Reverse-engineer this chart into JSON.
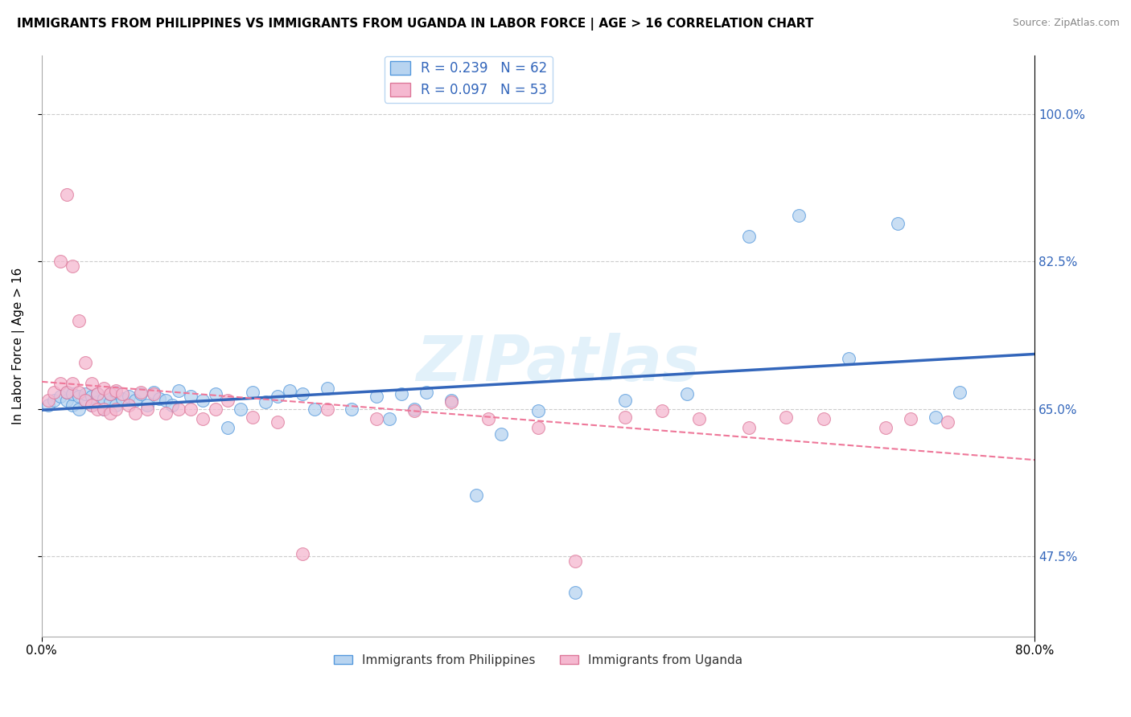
{
  "title": "IMMIGRANTS FROM PHILIPPINES VS IMMIGRANTS FROM UGANDA IN LABOR FORCE | AGE > 16 CORRELATION CHART",
  "source": "Source: ZipAtlas.com",
  "ylabel": "In Labor Force | Age > 16",
  "xmin": 0.0,
  "xmax": 0.8,
  "ymin": 0.38,
  "ymax": 1.07,
  "yticks": [
    0.475,
    0.65,
    0.825,
    1.0
  ],
  "ytick_labels": [
    "47.5%",
    "65.0%",
    "82.5%",
    "100.0%"
  ],
  "philippines_color": "#b8d4f0",
  "uganda_color": "#f5b8d0",
  "philippines_edge_color": "#5599dd",
  "uganda_edge_color": "#dd7799",
  "philippines_line_color": "#3366bb",
  "uganda_line_color": "#ee7799",
  "watermark": "ZIPatlas",
  "legend_philippines": "R = 0.239   N = 62",
  "legend_uganda": "R = 0.097   N = 53",
  "philippines_x": [
    0.005,
    0.01,
    0.015,
    0.02,
    0.02,
    0.025,
    0.025,
    0.03,
    0.03,
    0.035,
    0.035,
    0.04,
    0.04,
    0.045,
    0.045,
    0.05,
    0.05,
    0.055,
    0.055,
    0.06,
    0.06,
    0.065,
    0.07,
    0.075,
    0.08,
    0.085,
    0.09,
    0.095,
    0.1,
    0.105,
    0.11,
    0.12,
    0.13,
    0.14,
    0.15,
    0.16,
    0.17,
    0.18,
    0.19,
    0.2,
    0.21,
    0.22,
    0.23,
    0.25,
    0.27,
    0.28,
    0.29,
    0.3,
    0.31,
    0.33,
    0.35,
    0.37,
    0.4,
    0.43,
    0.47,
    0.52,
    0.57,
    0.61,
    0.65,
    0.69,
    0.72,
    0.74
  ],
  "philippines_y": [
    0.655,
    0.66,
    0.665,
    0.66,
    0.67,
    0.655,
    0.668,
    0.65,
    0.665,
    0.66,
    0.668,
    0.655,
    0.665,
    0.658,
    0.668,
    0.65,
    0.662,
    0.658,
    0.668,
    0.655,
    0.67,
    0.662,
    0.665,
    0.66,
    0.668,
    0.655,
    0.67,
    0.662,
    0.66,
    0.655,
    0.672,
    0.665,
    0.66,
    0.668,
    0.628,
    0.65,
    0.67,
    0.658,
    0.665,
    0.672,
    0.668,
    0.65,
    0.675,
    0.65,
    0.665,
    0.638,
    0.668,
    0.65,
    0.67,
    0.66,
    0.548,
    0.62,
    0.648,
    0.432,
    0.66,
    0.668,
    0.855,
    0.88,
    0.71,
    0.87,
    0.64,
    0.67
  ],
  "uganda_x": [
    0.005,
    0.01,
    0.015,
    0.015,
    0.02,
    0.02,
    0.025,
    0.025,
    0.03,
    0.03,
    0.035,
    0.035,
    0.04,
    0.04,
    0.045,
    0.045,
    0.05,
    0.05,
    0.055,
    0.055,
    0.06,
    0.06,
    0.065,
    0.07,
    0.075,
    0.08,
    0.085,
    0.09,
    0.1,
    0.11,
    0.12,
    0.13,
    0.14,
    0.15,
    0.17,
    0.19,
    0.21,
    0.23,
    0.27,
    0.3,
    0.33,
    0.36,
    0.4,
    0.43,
    0.47,
    0.5,
    0.53,
    0.57,
    0.6,
    0.63,
    0.68,
    0.7,
    0.73
  ],
  "uganda_y": [
    0.66,
    0.67,
    0.825,
    0.68,
    0.905,
    0.67,
    0.82,
    0.68,
    0.755,
    0.67,
    0.705,
    0.66,
    0.68,
    0.655,
    0.668,
    0.65,
    0.675,
    0.65,
    0.668,
    0.645,
    0.672,
    0.65,
    0.668,
    0.655,
    0.645,
    0.67,
    0.65,
    0.668,
    0.645,
    0.65,
    0.65,
    0.638,
    0.65,
    0.66,
    0.64,
    0.635,
    0.478,
    0.65,
    0.638,
    0.648,
    0.658,
    0.638,
    0.628,
    0.47,
    0.64,
    0.648,
    0.638,
    0.628,
    0.64,
    0.638,
    0.628,
    0.638,
    0.635
  ]
}
